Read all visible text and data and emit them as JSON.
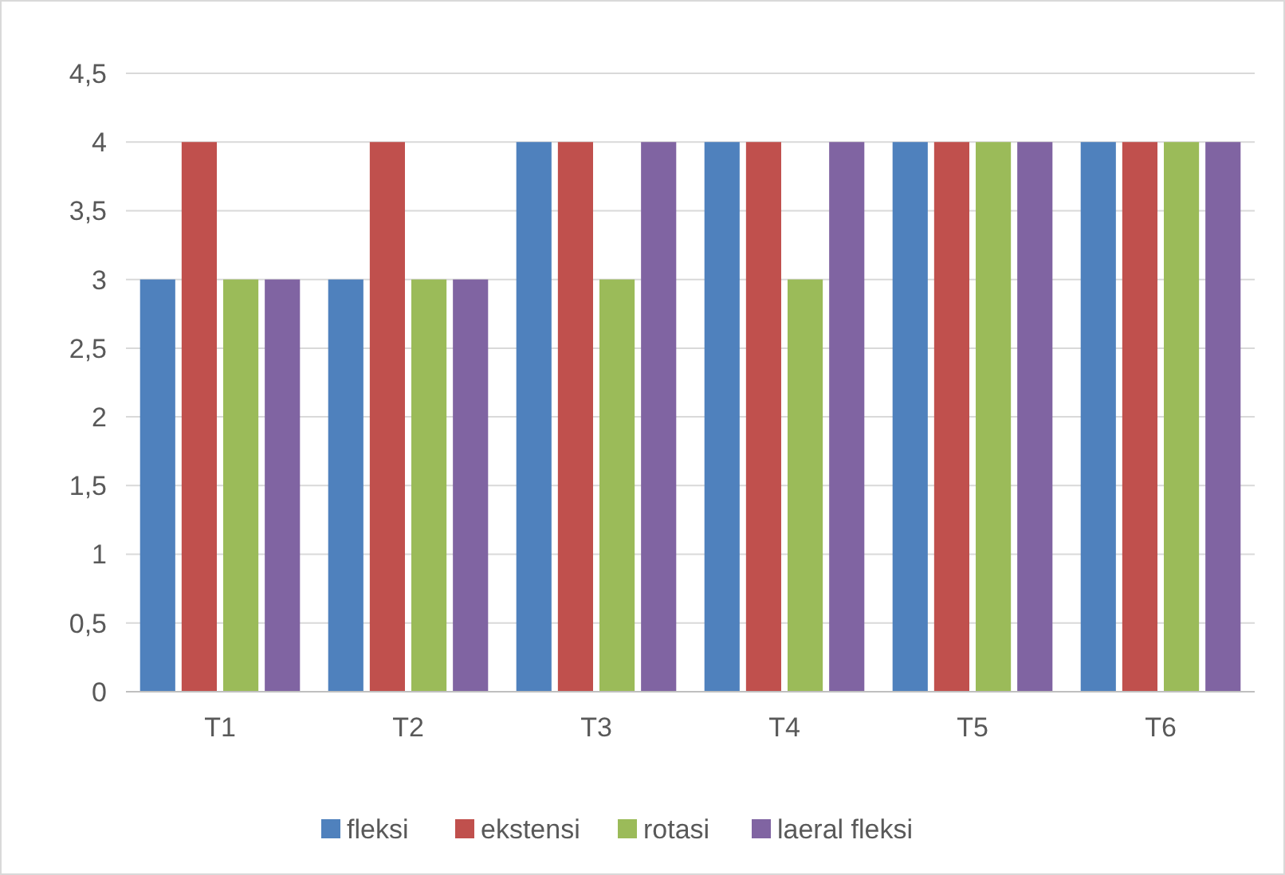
{
  "chart_data": {
    "type": "bar",
    "categories": [
      "T1",
      "T2",
      "T3",
      "T4",
      "T5",
      "T6"
    ],
    "series": [
      {
        "name": "fleksi",
        "color": "#4f81bd",
        "values": [
          3,
          3,
          4,
          4,
          4,
          4
        ]
      },
      {
        "name": "ekstensi",
        "color": "#c0504d",
        "values": [
          4,
          4,
          4,
          4,
          4,
          4
        ]
      },
      {
        "name": "rotasi",
        "color": "#9bbb59",
        "values": [
          3,
          3,
          3,
          3,
          4,
          4
        ]
      },
      {
        "name": "laeral fleksi",
        "color": "#8064a2",
        "values": [
          3,
          3,
          4,
          4,
          4,
          4
        ]
      }
    ],
    "ylim": [
      0,
      4.5
    ],
    "yticks": [
      {
        "value": 0,
        "label": "0"
      },
      {
        "value": 0.5,
        "label": "0,5"
      },
      {
        "value": 1,
        "label": "1"
      },
      {
        "value": 1.5,
        "label": "1,5"
      },
      {
        "value": 2,
        "label": "2"
      },
      {
        "value": 2.5,
        "label": "2,5"
      },
      {
        "value": 3,
        "label": "3"
      },
      {
        "value": 3.5,
        "label": "3,5"
      },
      {
        "value": 4,
        "label": "4"
      },
      {
        "value": 4.5,
        "label": "4,5"
      }
    ],
    "grid": "y",
    "legend": "bottom"
  }
}
